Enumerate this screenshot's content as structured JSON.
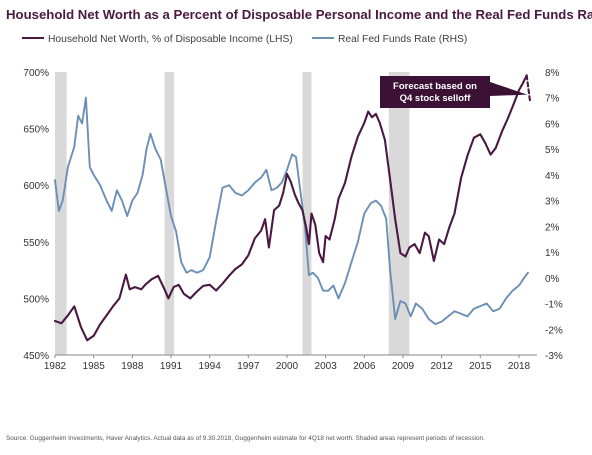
{
  "title": "Household Net Worth as a Percent of Disposable Personal Income and the Real Fed Funds Rate",
  "source": "Source: Guggenheim Investments, Haver Analytics. Actual data as of 9.30.2018, Guggenheim estimate for 4Q18 net worth. Shaded areas represent periods of recession.",
  "colors": {
    "net_worth": "#4a1942",
    "fed_funds": "#6b8fb5",
    "recession": "#d9d9d9",
    "callout": "#3b1136",
    "axis_text": "#333333"
  },
  "chart_data": {
    "type": "line",
    "title": "Household Net Worth as a Percent of Disposable Personal Income and the Real Fed Funds Rate",
    "x_ticks": [
      "1982",
      "1985",
      "1988",
      "1991",
      "1994",
      "1997",
      "2000",
      "2003",
      "2006",
      "2009",
      "2012",
      "2015",
      "2018"
    ],
    "xlim": [
      1982.0,
      2019.4
    ],
    "y_left": {
      "ticks": [
        "450%",
        "500%",
        "550%",
        "600%",
        "650%",
        "700%"
      ],
      "lim": [
        450,
        700
      ]
    },
    "y_right": {
      "ticks": [
        "-3%",
        "-2%",
        "-1%",
        "0%",
        "1%",
        "2%",
        "3%",
        "4%",
        "5%",
        "6%",
        "7%",
        "8%"
      ],
      "lim": [
        -3,
        8
      ]
    },
    "recessions": [
      [
        1981.5,
        1982.9
      ],
      [
        1990.5,
        1991.25
      ],
      [
        2001.2,
        2001.9
      ],
      [
        2007.9,
        2009.5
      ]
    ],
    "annotation": {
      "text_lines": [
        "Forecast based on",
        "Q4 stock selloff"
      ],
      "x": 2018.95,
      "y": 680
    },
    "series": [
      {
        "name": "Household Net Worth, % of Disposable Income (LHS)",
        "axis": "left",
        "points": [
          [
            1982.0,
            480
          ],
          [
            1982.5,
            478
          ],
          [
            1983.0,
            485
          ],
          [
            1983.5,
            493
          ],
          [
            1984.0,
            475
          ],
          [
            1984.5,
            463
          ],
          [
            1985.0,
            467
          ],
          [
            1985.5,
            477
          ],
          [
            1986.0,
            485
          ],
          [
            1986.5,
            493
          ],
          [
            1987.0,
            500
          ],
          [
            1987.5,
            521
          ],
          [
            1987.8,
            508
          ],
          [
            1988.2,
            510
          ],
          [
            1988.7,
            508
          ],
          [
            1989.0,
            512
          ],
          [
            1989.5,
            517
          ],
          [
            1990.0,
            520
          ],
          [
            1990.5,
            508
          ],
          [
            1990.8,
            500
          ],
          [
            1991.2,
            510
          ],
          [
            1991.6,
            512
          ],
          [
            1992.0,
            504
          ],
          [
            1992.5,
            500
          ],
          [
            1993.0,
            506
          ],
          [
            1993.5,
            511
          ],
          [
            1994.0,
            512
          ],
          [
            1994.5,
            507
          ],
          [
            1995.0,
            513
          ],
          [
            1995.5,
            520
          ],
          [
            1996.0,
            526
          ],
          [
            1996.5,
            530
          ],
          [
            1997.0,
            538
          ],
          [
            1997.5,
            553
          ],
          [
            1998.0,
            560
          ],
          [
            1998.3,
            570
          ],
          [
            1998.6,
            545
          ],
          [
            1999.0,
            578
          ],
          [
            1999.4,
            582
          ],
          [
            1999.7,
            593
          ],
          [
            2000.0,
            610
          ],
          [
            2000.3,
            603
          ],
          [
            2000.6,
            592
          ],
          [
            2000.9,
            584
          ],
          [
            2001.2,
            578
          ],
          [
            2001.5,
            562
          ],
          [
            2001.7,
            548
          ],
          [
            2001.9,
            575
          ],
          [
            2002.2,
            565
          ],
          [
            2002.5,
            540
          ],
          [
            2002.8,
            532
          ],
          [
            2003.0,
            555
          ],
          [
            2003.3,
            552
          ],
          [
            2003.7,
            570
          ],
          [
            2004.0,
            588
          ],
          [
            2004.5,
            602
          ],
          [
            2005.0,
            625
          ],
          [
            2005.5,
            643
          ],
          [
            2006.0,
            655
          ],
          [
            2006.3,
            665
          ],
          [
            2006.6,
            660
          ],
          [
            2006.9,
            663
          ],
          [
            2007.2,
            655
          ],
          [
            2007.6,
            640
          ],
          [
            2008.0,
            605
          ],
          [
            2008.4,
            570
          ],
          [
            2008.8,
            540
          ],
          [
            2009.2,
            537
          ],
          [
            2009.5,
            545
          ],
          [
            2009.9,
            548
          ],
          [
            2010.3,
            540
          ],
          [
            2010.7,
            558
          ],
          [
            2011.0,
            555
          ],
          [
            2011.4,
            533
          ],
          [
            2011.8,
            552
          ],
          [
            2012.2,
            548
          ],
          [
            2012.6,
            563
          ],
          [
            2013.0,
            575
          ],
          [
            2013.5,
            606
          ],
          [
            2014.0,
            626
          ],
          [
            2014.5,
            642
          ],
          [
            2015.0,
            645
          ],
          [
            2015.4,
            637
          ],
          [
            2015.8,
            627
          ],
          [
            2016.2,
            633
          ],
          [
            2016.7,
            648
          ],
          [
            2017.1,
            658
          ],
          [
            2017.6,
            672
          ],
          [
            2018.0,
            684
          ],
          [
            2018.3,
            690
          ],
          [
            2018.6,
            697
          ]
        ]
      },
      {
        "name": "Real Fed Funds Rate (RHS)",
        "axis": "right",
        "points": [
          [
            1982.0,
            3.8
          ],
          [
            1982.3,
            2.6
          ],
          [
            1982.6,
            3.0
          ],
          [
            1983.0,
            4.3
          ],
          [
            1983.5,
            5.1
          ],
          [
            1983.8,
            6.3
          ],
          [
            1984.1,
            6.0
          ],
          [
            1984.4,
            7.0
          ],
          [
            1984.7,
            4.3
          ],
          [
            1985.0,
            4.0
          ],
          [
            1985.5,
            3.6
          ],
          [
            1986.0,
            3.0
          ],
          [
            1986.4,
            2.6
          ],
          [
            1986.8,
            3.4
          ],
          [
            1987.2,
            3.0
          ],
          [
            1987.6,
            2.4
          ],
          [
            1988.0,
            3.0
          ],
          [
            1988.4,
            3.3
          ],
          [
            1988.8,
            4.0
          ],
          [
            1989.1,
            5.0
          ],
          [
            1989.4,
            5.6
          ],
          [
            1989.8,
            5.0
          ],
          [
            1990.2,
            4.6
          ],
          [
            1990.6,
            3.5
          ],
          [
            1991.0,
            2.4
          ],
          [
            1991.4,
            1.8
          ],
          [
            1991.8,
            0.6
          ],
          [
            1992.2,
            0.2
          ],
          [
            1992.6,
            0.3
          ],
          [
            1993.0,
            0.2
          ],
          [
            1993.5,
            0.3
          ],
          [
            1994.0,
            0.8
          ],
          [
            1994.5,
            2.2
          ],
          [
            1995.0,
            3.5
          ],
          [
            1995.5,
            3.6
          ],
          [
            1996.0,
            3.3
          ],
          [
            1996.5,
            3.2
          ],
          [
            1997.0,
            3.4
          ],
          [
            1997.5,
            3.7
          ],
          [
            1998.0,
            3.9
          ],
          [
            1998.4,
            4.2
          ],
          [
            1998.8,
            3.4
          ],
          [
            1999.2,
            3.5
          ],
          [
            1999.6,
            3.7
          ],
          [
            2000.0,
            4.2
          ],
          [
            2000.4,
            4.8
          ],
          [
            2000.7,
            4.7
          ],
          [
            2001.0,
            3.5
          ],
          [
            2001.4,
            2.0
          ],
          [
            2001.7,
            0.1
          ],
          [
            2002.0,
            0.2
          ],
          [
            2002.4,
            0.0
          ],
          [
            2002.8,
            -0.5
          ],
          [
            2003.2,
            -0.5
          ],
          [
            2003.6,
            -0.3
          ],
          [
            2004.0,
            -0.8
          ],
          [
            2004.5,
            -0.2
          ],
          [
            2005.0,
            0.6
          ],
          [
            2005.5,
            1.4
          ],
          [
            2006.0,
            2.5
          ],
          [
            2006.5,
            2.9
          ],
          [
            2006.9,
            3.0
          ],
          [
            2007.3,
            2.8
          ],
          [
            2007.7,
            2.3
          ],
          [
            2008.0,
            0.3
          ],
          [
            2008.4,
            -1.6
          ],
          [
            2008.8,
            -0.9
          ],
          [
            2009.2,
            -1.0
          ],
          [
            2009.6,
            -1.5
          ],
          [
            2010.0,
            -1.0
          ],
          [
            2010.5,
            -1.2
          ],
          [
            2011.0,
            -1.6
          ],
          [
            2011.5,
            -1.8
          ],
          [
            2012.0,
            -1.7
          ],
          [
            2012.5,
            -1.5
          ],
          [
            2013.0,
            -1.3
          ],
          [
            2013.5,
            -1.4
          ],
          [
            2014.0,
            -1.5
          ],
          [
            2014.5,
            -1.2
          ],
          [
            2015.0,
            -1.1
          ],
          [
            2015.5,
            -1.0
          ],
          [
            2016.0,
            -1.3
          ],
          [
            2016.5,
            -1.2
          ],
          [
            2017.0,
            -0.8
          ],
          [
            2017.5,
            -0.5
          ],
          [
            2018.0,
            -0.3
          ],
          [
            2018.4,
            0.0
          ],
          [
            2018.7,
            0.2
          ]
        ]
      },
      {
        "name": "Forecast",
        "axis": "left",
        "dashed": true,
        "points": [
          [
            2018.6,
            697
          ],
          [
            2018.85,
            675
          ]
        ]
      }
    ]
  }
}
